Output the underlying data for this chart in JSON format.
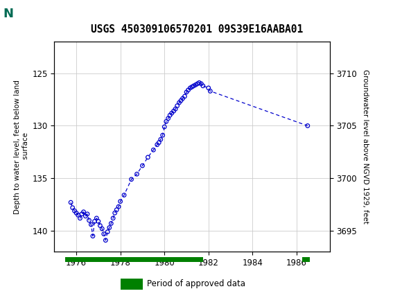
{
  "title": "USGS 450309106570201 09S39E16AABA01",
  "ylabel_left": "Depth to water level, feet below land\n surface",
  "ylabel_right": "Groundwater level above NGVD 1929, feet",
  "xlim": [
    1975.0,
    1987.5
  ],
  "ylim_left_bottom": 142,
  "ylim_left_top": 122,
  "ylim_right_bottom": 3693,
  "ylim_right_top": 3713,
  "xticks": [
    1976,
    1978,
    1980,
    1982,
    1984,
    1986
  ],
  "yticks_left": [
    125,
    130,
    135,
    140
  ],
  "yticks_right": [
    3695,
    3700,
    3705,
    3710
  ],
  "background_color": "#ffffff",
  "header_color": "#006B54",
  "grid_color": "#cccccc",
  "data_color": "#0000cc",
  "approved_bar_color": "#008000",
  "data_x": [
    1975.75,
    1975.83,
    1975.92,
    1976.0,
    1976.08,
    1976.17,
    1976.25,
    1976.33,
    1976.42,
    1976.5,
    1976.58,
    1976.67,
    1976.75,
    1976.83,
    1976.92,
    1977.0,
    1977.08,
    1977.17,
    1977.25,
    1977.33,
    1977.42,
    1977.5,
    1977.58,
    1977.67,
    1977.75,
    1977.83,
    1977.92,
    1978.0,
    1978.17,
    1978.5,
    1978.75,
    1979.0,
    1979.25,
    1979.5,
    1979.67,
    1979.75,
    1979.83,
    1979.92,
    1980.0,
    1980.08,
    1980.17,
    1980.25,
    1980.33,
    1980.42,
    1980.5,
    1980.58,
    1980.67,
    1980.75,
    1980.83,
    1980.92,
    1981.0,
    1981.08,
    1981.17,
    1981.25,
    1981.33,
    1981.42,
    1981.5,
    1981.58,
    1981.67,
    1981.75,
    1982.0,
    1982.08,
    1986.5
  ],
  "data_y": [
    137.3,
    137.8,
    138.1,
    138.3,
    138.5,
    138.8,
    138.4,
    138.2,
    138.6,
    138.4,
    139.0,
    139.4,
    140.5,
    139.1,
    138.8,
    139.1,
    139.5,
    139.8,
    140.3,
    140.9,
    140.1,
    139.7,
    139.3,
    138.8,
    138.3,
    138.0,
    137.7,
    137.2,
    136.6,
    135.1,
    134.6,
    133.8,
    133.0,
    132.3,
    131.8,
    131.6,
    131.3,
    130.9,
    130.1,
    129.6,
    129.3,
    129.0,
    128.8,
    128.6,
    128.4,
    128.1,
    127.8,
    127.6,
    127.4,
    127.2,
    126.8,
    126.6,
    126.4,
    126.3,
    126.2,
    126.1,
    126.0,
    125.9,
    126.0,
    126.2,
    126.4,
    126.7,
    130.0
  ],
  "approved_segments": [
    {
      "x_start": 1975.5,
      "x_end": 1981.75
    },
    {
      "x_start": 1986.25,
      "x_end": 1986.6
    }
  ]
}
